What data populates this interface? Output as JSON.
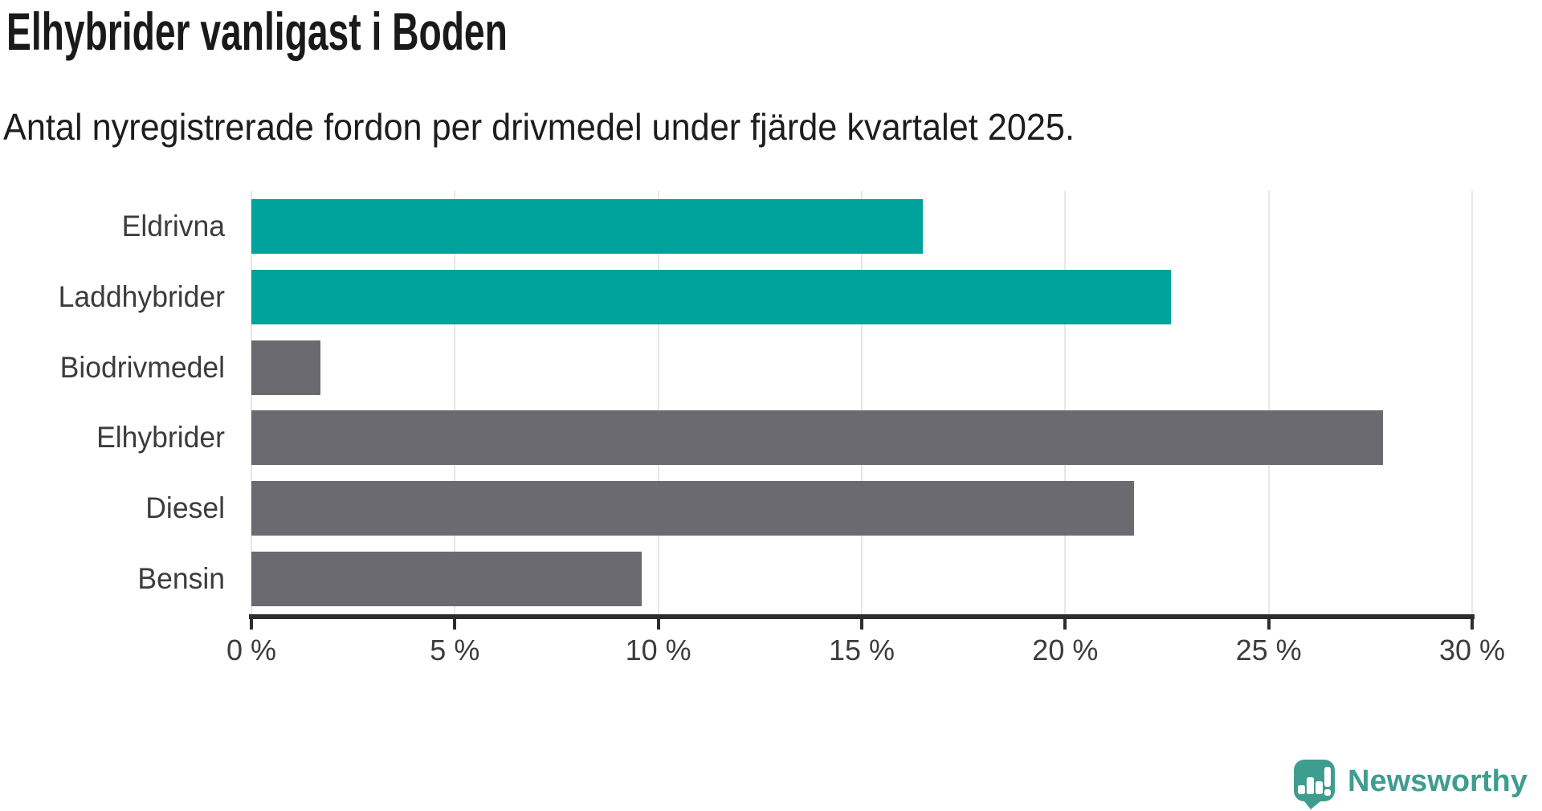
{
  "chart_data": {
    "type": "bar",
    "orientation": "horizontal",
    "title": "Elhybrider vanligast i Boden",
    "subtitle": "Antal nyregistrerade fordon per drivmedel under fjärde kvartalet 2025.",
    "categories": [
      "Eldrivna",
      "Laddhybrider",
      "Biodrivmedel",
      "Elhybrider",
      "Diesel",
      "Bensin"
    ],
    "values": [
      16.5,
      22.6,
      1.7,
      27.8,
      21.7,
      9.6
    ],
    "unit": "%",
    "bar_colors": [
      "#00a39b",
      "#00a39b",
      "#6c6a71",
      "#6c6a71",
      "#6c6a71",
      "#6c6a71"
    ],
    "highlight_color": "#00a39b",
    "default_color": "#6c6a71",
    "xlim": [
      0,
      30
    ],
    "x_ticks": [
      0,
      5,
      10,
      15,
      20,
      25,
      30
    ],
    "x_tick_labels": [
      "0 %",
      "5 %",
      "10 %",
      "15 %",
      "20 %",
      "25 %",
      "30 %"
    ],
    "grid": "vertical",
    "gridline_color": "#e7e7e7",
    "axis_color": "#2d2d2d",
    "legend_position": "none"
  },
  "logo": {
    "text": "Newsworthy",
    "color": "#3f9d8f",
    "icon": "speech-bubble-bar-chart-exclamation"
  }
}
